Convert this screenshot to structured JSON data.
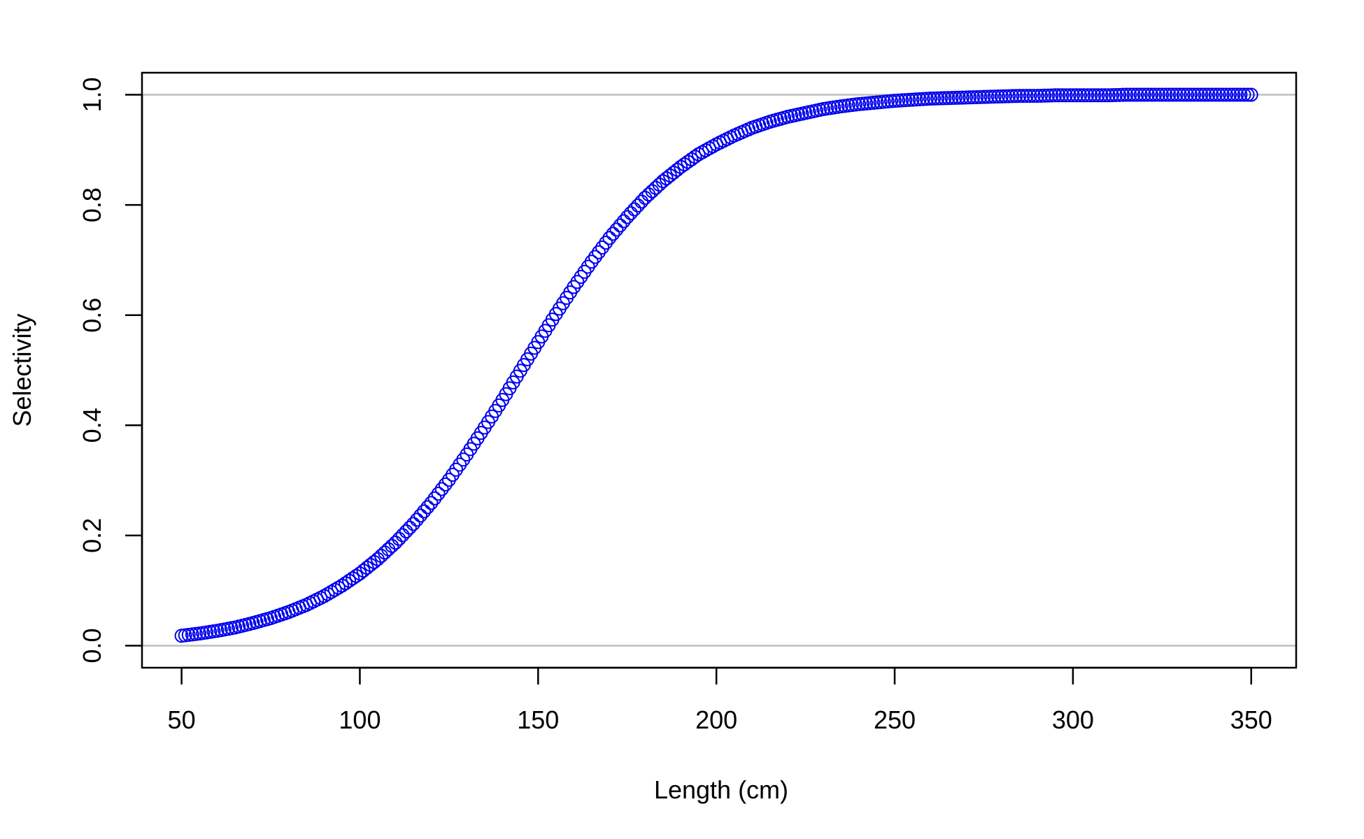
{
  "chart_data": {
    "type": "scatter",
    "title": "",
    "xlabel": "Length (cm)",
    "ylabel": "Selectivity",
    "xlim": [
      50,
      350
    ],
    "ylim": [
      0,
      1
    ],
    "x_ticks": [
      "50",
      "100",
      "150",
      "200",
      "250",
      "300",
      "350"
    ],
    "y_ticks": [
      "0.0",
      "0.2",
      "0.4",
      "0.6",
      "0.8",
      "1.0"
    ],
    "grid": false,
    "reference_lines_y": [
      0,
      1
    ],
    "colors": {
      "points": "#0000ee",
      "reference_lines": "#bebebe",
      "axes": "#000000"
    },
    "marker": "open-circle",
    "series": [
      {
        "x": [
          50,
          55,
          60,
          65,
          70,
          75,
          80,
          85,
          90,
          95,
          100,
          105,
          110,
          115,
          120,
          125,
          130,
          135,
          140,
          145,
          150,
          155,
          160,
          165,
          170,
          175,
          180,
          185,
          190,
          195,
          200,
          205,
          210,
          215,
          220,
          225,
          230,
          235,
          240,
          245,
          250,
          255,
          260,
          265,
          270,
          275,
          280,
          285,
          290,
          295,
          300,
          305,
          310,
          315,
          320,
          325,
          330,
          335,
          340,
          345,
          350
        ],
        "values": [
          0.018,
          0.022,
          0.027,
          0.033,
          0.041,
          0.05,
          0.061,
          0.074,
          0.09,
          0.109,
          0.131,
          0.157,
          0.187,
          0.221,
          0.259,
          0.301,
          0.347,
          0.396,
          0.446,
          0.499,
          0.551,
          0.602,
          0.651,
          0.697,
          0.74,
          0.778,
          0.813,
          0.843,
          0.869,
          0.892,
          0.91,
          0.926,
          0.94,
          0.951,
          0.96,
          0.967,
          0.974,
          0.979,
          0.983,
          0.986,
          0.989,
          0.991,
          0.993,
          0.994,
          0.995,
          0.996,
          0.997,
          0.998,
          0.998,
          0.999,
          0.999,
          0.999,
          0.999,
          1.0,
          1.0,
          1.0,
          1.0,
          1.0,
          1.0,
          1.0,
          1.0
        ]
      }
    ]
  }
}
